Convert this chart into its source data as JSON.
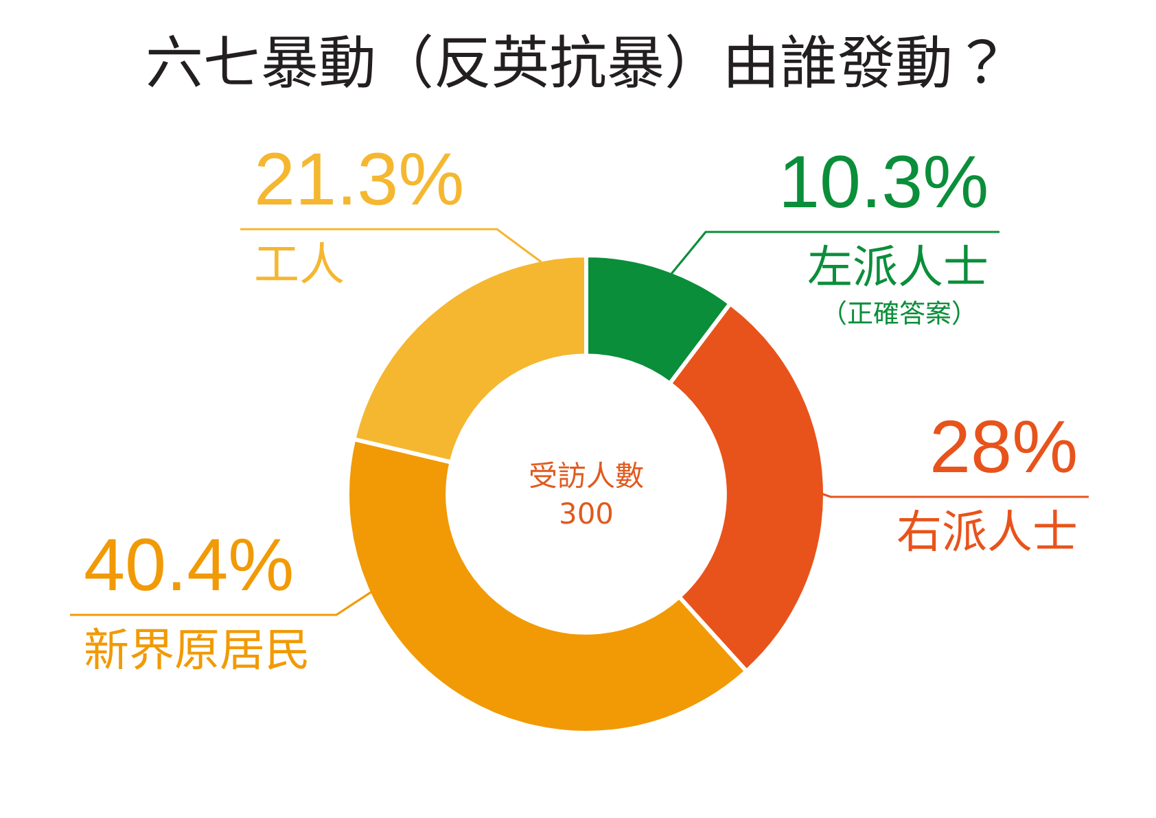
{
  "chart_data": {
    "type": "donut",
    "title": "六七暴動（反英抗暴）由誰發動？",
    "categories": [
      "左派人士",
      "右派人士",
      "新界原居民",
      "工人"
    ],
    "values": [
      10.3,
      28,
      40.4,
      21.3
    ],
    "value_labels": [
      "10.3%",
      "28%",
      "40.4%",
      "21.3%"
    ],
    "colors": [
      "#0b8e3a",
      "#e8531b",
      "#f19a05",
      "#f5b730"
    ],
    "annotations": [
      "受訪人數\n300",
      "（正確答案）"
    ]
  }
}
